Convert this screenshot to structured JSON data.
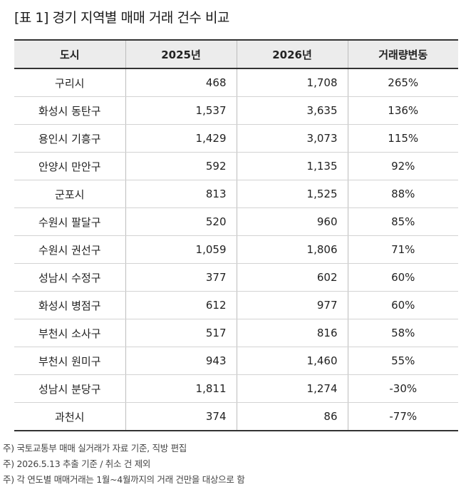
{
  "title": "[표 1] 경기 지역별 매매 거래 건수 비교",
  "table": {
    "headers": [
      "도시",
      "2025년",
      "2026년",
      "거래량변동"
    ],
    "rows": [
      [
        "구리시",
        "468",
        "1,708",
        "265%"
      ],
      [
        "화성시 동탄구",
        "1,537",
        "3,635",
        "136%"
      ],
      [
        "용인시 기흥구",
        "1,429",
        "3,073",
        "115%"
      ],
      [
        "안양시 만안구",
        "592",
        "1,135",
        "92%"
      ],
      [
        "군포시",
        "813",
        "1,525",
        "88%"
      ],
      [
        "수원시 팔달구",
        "520",
        "960",
        "85%"
      ],
      [
        "수원시 권선구",
        "1,059",
        "1,806",
        "71%"
      ],
      [
        "성남시 수정구",
        "377",
        "602",
        "60%"
      ],
      [
        "화성시 병점구",
        "612",
        "977",
        "60%"
      ],
      [
        "부천시 소사구",
        "517",
        "816",
        "58%"
      ],
      [
        "부천시 원미구",
        "943",
        "1,460",
        "55%"
      ],
      [
        "성남시 분당구",
        "1,811",
        "1,274",
        "-30%"
      ],
      [
        "과천시",
        "374",
        "86",
        "-77%"
      ]
    ]
  },
  "notes": [
    "주) 국토교통부 매매 실거래가 자료 기준, 직방 편집",
    "주) 2026.5.13 추출 기준 / 취소 건 제외",
    "주) 각 연도별 매매거래는 1월~4월까지의 거래 건만을 대상으로 함"
  ]
}
